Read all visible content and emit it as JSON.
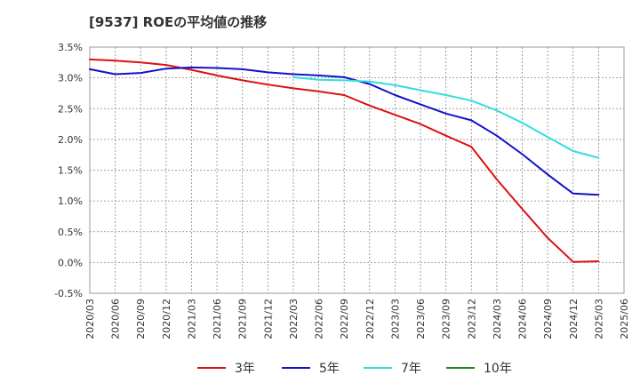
{
  "title": "[9537]  ROEの平均値の推移",
  "chart_data": {
    "type": "line",
    "title": "[9537]  ROEの平均値の推移",
    "xlabel": "",
    "ylabel": "",
    "ylim": [
      -0.5,
      3.5
    ],
    "yticks": [
      "-0.5%",
      "0.0%",
      "0.5%",
      "1.0%",
      "1.5%",
      "2.0%",
      "2.5%",
      "3.0%",
      "3.5%"
    ],
    "x": [
      "2020/03",
      "2020/06",
      "2020/09",
      "2020/12",
      "2021/03",
      "2021/06",
      "2021/09",
      "2021/12",
      "2022/03",
      "2022/06",
      "2022/09",
      "2022/12",
      "2023/03",
      "2023/06",
      "2023/09",
      "2023/12",
      "2024/03",
      "2024/06",
      "2024/09",
      "2024/12",
      "2025/03",
      "2025/06"
    ],
    "grid": true,
    "legend_position": "bottom",
    "series": [
      {
        "name": "3年",
        "color": "#dd1111",
        "values": [
          3.3,
          3.28,
          3.25,
          3.21,
          3.13,
          3.04,
          2.96,
          2.89,
          2.83,
          2.78,
          2.72,
          2.55,
          2.4,
          2.25,
          2.06,
          1.88,
          1.35,
          0.87,
          0.4,
          0.01,
          0.02,
          null
        ]
      },
      {
        "name": "5年",
        "color": "#1111cc",
        "values": [
          3.14,
          3.06,
          3.08,
          3.15,
          3.17,
          3.16,
          3.14,
          3.09,
          3.06,
          3.04,
          3.01,
          2.9,
          2.72,
          2.57,
          2.42,
          2.31,
          2.06,
          1.76,
          1.43,
          1.12,
          1.1,
          null
        ]
      },
      {
        "name": "7年",
        "color": "#33dddd",
        "values": [
          null,
          null,
          null,
          null,
          null,
          null,
          null,
          null,
          3.01,
          2.97,
          2.96,
          2.94,
          2.88,
          2.8,
          2.72,
          2.63,
          2.47,
          2.27,
          2.04,
          1.81,
          1.7,
          null
        ]
      },
      {
        "name": "10年",
        "color": "#228822",
        "values": [
          null,
          null,
          null,
          null,
          null,
          null,
          null,
          null,
          null,
          null,
          null,
          null,
          null,
          null,
          null,
          null,
          null,
          null,
          null,
          null,
          null,
          null
        ]
      }
    ]
  }
}
